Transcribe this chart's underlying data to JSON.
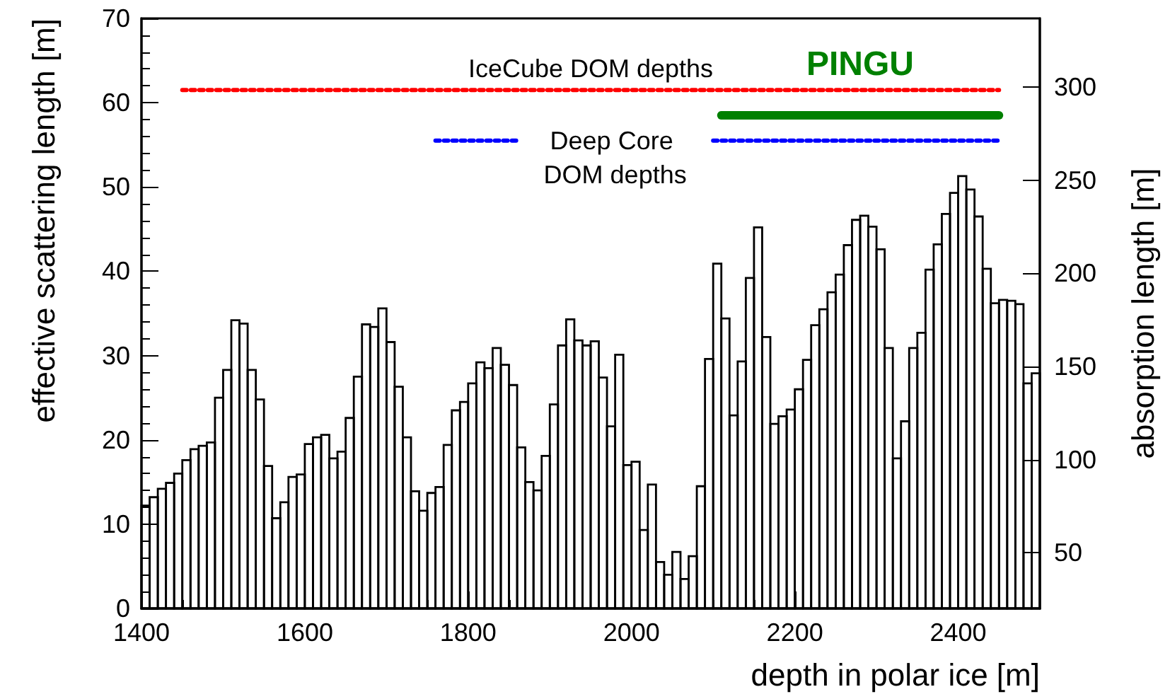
{
  "chart_data": {
    "type": "histogram",
    "xlabel": "depth in polar ice [m]",
    "ylabel": "effective scattering length [m]",
    "y2label": "absorption length [m]",
    "bins": [
      1400,
      1410,
      1420,
      1430,
      1440,
      1450,
      1460,
      1470,
      1480,
      1490,
      1500,
      1510,
      1520,
      1530,
      1540,
      1550,
      1560,
      1570,
      1580,
      1590,
      1600,
      1610,
      1620,
      1630,
      1640,
      1650,
      1660,
      1670,
      1680,
      1690,
      1700,
      1710,
      1720,
      1730,
      1740,
      1750,
      1760,
      1770,
      1780,
      1790,
      1800,
      1810,
      1820,
      1830,
      1840,
      1850,
      1860,
      1870,
      1880,
      1890,
      1900,
      1910,
      1920,
      1930,
      1940,
      1950,
      1960,
      1970,
      1980,
      1990,
      2000,
      2010,
      2020,
      2030,
      2040,
      2050,
      2060,
      2070,
      2080,
      2090,
      2100,
      2110,
      2120,
      2130,
      2140,
      2150,
      2160,
      2170,
      2180,
      2190,
      2200,
      2210,
      2220,
      2230,
      2240,
      2250,
      2260,
      2270,
      2280,
      2290,
      2300,
      2310,
      2320,
      2330,
      2340,
      2350,
      2360,
      2370,
      2380,
      2390,
      2400,
      2410,
      2420,
      2430,
      2440,
      2450,
      2460,
      2470,
      2480,
      2490,
      2500
    ],
    "values": [
      12.2,
      13.2,
      14.2,
      14.9,
      16.0,
      17.6,
      18.9,
      19.3,
      19.7,
      25.0,
      28.3,
      34.2,
      33.8,
      28.3,
      24.8,
      16.9,
      10.7,
      12.6,
      15.6,
      15.9,
      19.5,
      20.3,
      20.6,
      17.8,
      18.6,
      22.6,
      27.5,
      33.7,
      33.4,
      35.6,
      31.6,
      26.3,
      20.3,
      13.9,
      11.6,
      13.7,
      14.4,
      19.4,
      23.5,
      24.5,
      26.7,
      29.2,
      28.5,
      30.9,
      28.9,
      26.5,
      19.1,
      15.0,
      14.0,
      18.1,
      24.2,
      31.2,
      34.3,
      31.8,
      31.2,
      31.7,
      27.4,
      21.6,
      30.1,
      17.0,
      17.4,
      9.3,
      14.7,
      5.5,
      4.0,
      6.7,
      3.5,
      6.2,
      14.5,
      29.6,
      40.9,
      34.4,
      22.9,
      29.3,
      39.2,
      45.2,
      32.2,
      21.9,
      22.8,
      23.6,
      26.0,
      29.5,
      33.6,
      35.5,
      37.5,
      39.6,
      43.1,
      46.1,
      46.6,
      45.3,
      42.6,
      30.9,
      17.8,
      22.2,
      30.9,
      32.7,
      40.2,
      43.2,
      46.8,
      49.3,
      51.3,
      49.7,
      46.5,
      40.3,
      36.2,
      36.6,
      36.5,
      36.1,
      26.7,
      27.9
    ],
    "color": "#000000",
    "series": [
      {
        "type": "line",
        "name": "IceCube DOM depths",
        "color": "#ff0000",
        "line_style": "dotted",
        "x": [
          1450,
          2450
        ],
        "values": [
          61.5,
          61.5
        ]
      },
      {
        "type": "line",
        "name": "PINGU",
        "color": "#008000",
        "line_style": "solid",
        "x": [
          2110,
          2450
        ],
        "values": [
          58.5,
          58.5
        ]
      },
      {
        "type": "line",
        "name": "Deep Core DOM depths",
        "color": "#0000ff",
        "line_style": "dotted",
        "x": [
          1760,
          1860,
          1980,
          2100,
          2450
        ],
        "values": [
          55.5,
          55.5,
          null,
          55.5,
          55.5
        ]
      }
    ],
    "xlim": [
      1400,
      2500
    ],
    "xticks": [
      1400,
      1600,
      1800,
      2000,
      2200,
      2400
    ],
    "ylim": [
      0,
      70
    ],
    "yticks": [
      0,
      10,
      20,
      30,
      40,
      50,
      60,
      70
    ],
    "y2lim": [
      20,
      337
    ],
    "y2ticks": [
      50,
      100,
      150,
      200,
      250,
      300
    ],
    "marker": "none",
    "grid": false,
    "legend": false
  }
}
